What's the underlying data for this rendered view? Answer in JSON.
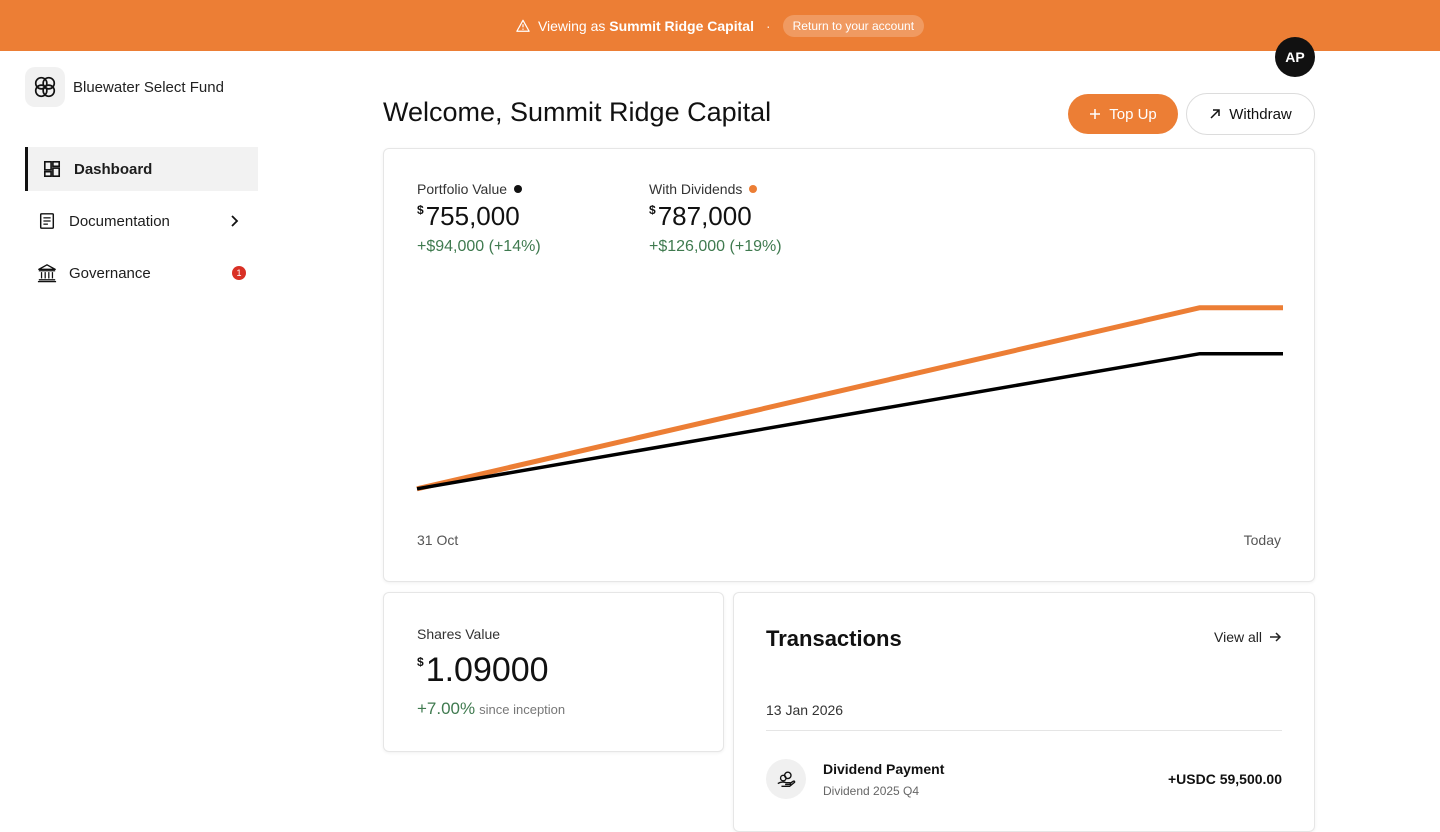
{
  "banner": {
    "viewing_prefix": "Viewing as",
    "account_name": "Summit Ridge Capital",
    "separator": "·",
    "return_label": "Return to your account",
    "bg_color": "#ec7e35"
  },
  "brand": {
    "name": "Bluewater Select Fund",
    "logo_icon": "interlinked-rings-icon"
  },
  "sidebar": {
    "items": [
      {
        "label": "Dashboard",
        "icon": "dashboard-icon",
        "active": true
      },
      {
        "label": "Documentation",
        "icon": "document-icon",
        "has_chevron": true
      },
      {
        "label": "Governance",
        "icon": "bank-icon",
        "badge": "1"
      }
    ]
  },
  "avatar": {
    "initials": "AP"
  },
  "header": {
    "welcome": "Welcome, Summit Ridge Capital",
    "topup_label": "Top Up",
    "withdraw_label": "Withdraw"
  },
  "portfolio": {
    "value_label": "Portfolio Value",
    "value_currency": "$",
    "value": "755,000",
    "value_change": "+$94,000 (+14%)",
    "dividends_label": "With Dividends",
    "dividends_currency": "$",
    "dividends_value": "787,000",
    "dividends_change": "+$126,000 (+19%)",
    "positive_color": "#3f7a4f"
  },
  "chart_data": {
    "type": "line",
    "x": [
      "31 Oct",
      "",
      "Today"
    ],
    "series": [
      {
        "values": [
          661000,
          755000,
          755000
        ],
        "color": "#000000"
      },
      {
        "values": [
          661000,
          787000,
          787000
        ],
        "color": "#ec7e35"
      }
    ],
    "x_labels": [
      "31 Oct",
      "Today"
    ],
    "ylim": [
      640000,
      800000
    ],
    "grid": false
  },
  "shares": {
    "label": "Shares Value",
    "currency": "$",
    "value": "1.09000",
    "change": "+7.00%",
    "since": "since inception"
  },
  "transactions": {
    "title": "Transactions",
    "view_all": "View all",
    "date": "13 Jan 2026",
    "items": [
      {
        "name": "Dividend Payment",
        "sub": "Dividend 2025 Q4",
        "amount": "+USDC 59,500.00",
        "icon": "coins-hand-icon"
      }
    ]
  }
}
